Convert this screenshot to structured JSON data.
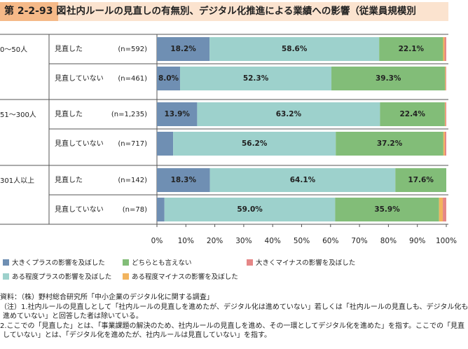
{
  "header": {
    "figure_number": "第 2-2-93 図",
    "title": "社内ルールの見直しの有無別、デジタル化推進による業績への影響（従業員規模別"
  },
  "chart_data": {
    "type": "bar",
    "orientation": "horizontal",
    "stacked": "percent",
    "groups": [
      {
        "label": "0～50人",
        "rows": [
          {
            "label": "見直した",
            "n": "(n=592)",
            "values": [
              18.2,
              58.6,
              22.1,
              0.5,
              0.6
            ],
            "value_labels": [
              "18.2%",
              "58.6%",
              "22.1%",
              "",
              ""
            ]
          },
          {
            "label": "見直していない",
            "n": "(n=461)",
            "values": [
              8.0,
              52.3,
              39.3,
              0.2,
              0.2
            ],
            "value_labels": [
              "8.0%",
              "52.3%",
              "39.3%",
              "",
              ""
            ]
          }
        ]
      },
      {
        "label": "51～300人",
        "rows": [
          {
            "label": "見直した",
            "n": "(n=1,235)",
            "values": [
              13.9,
              63.2,
              22.4,
              0.2,
              0.3
            ],
            "value_labels": [
              "13.9%",
              "63.2%",
              "22.4%",
              "",
              ""
            ]
          },
          {
            "label": "見直していない",
            "n": "(n=717)",
            "values": [
              5.6,
              56.2,
              37.2,
              0.5,
              0.5
            ],
            "value_labels": [
              "",
              "56.2%",
              "37.2%",
              "",
              ""
            ]
          }
        ]
      },
      {
        "label": "301人以上",
        "rows": [
          {
            "label": "見直した",
            "n": "(n=142)",
            "values": [
              18.3,
              64.1,
              17.6,
              0.0,
              0.0
            ],
            "value_labels": [
              "18.3%",
              "64.1%",
              "17.6%",
              "",
              ""
            ]
          },
          {
            "label": "見直していない",
            "n": "(n=78)",
            "values": [
              2.6,
              59.0,
              35.9,
              1.3,
              1.2
            ],
            "value_labels": [
              "",
              "59.0%",
              "35.9%",
              "",
              ""
            ]
          }
        ]
      }
    ],
    "series": [
      {
        "name": "大きくプラスの影響を及ぼした",
        "color": "#6f8fb3"
      },
      {
        "name": "ある程度プラスの影響を及ぼした",
        "color": "#9dd1cc"
      },
      {
        "name": "どちらとも言えない",
        "color": "#82bd78"
      },
      {
        "name": "ある程度マイナスの影響を及ぼした",
        "color": "#f2b45e"
      },
      {
        "name": "大きくマイナスの影響を及ぼした",
        "color": "#e58787"
      }
    ],
    "x_ticks": [
      "0%",
      "10%",
      "20%",
      "30%",
      "40%",
      "50%",
      "60%",
      "70%",
      "80%",
      "90%",
      "100%"
    ],
    "xlim": [
      0,
      100
    ],
    "grid": false,
    "legend_position": "bottom"
  },
  "notes": [
    "資料：（株）野村総合研究所「中小企業のデジタル化に関する調査」",
    "（注）1.社内ルールの見直しとして「社内ルールの見直しを進めたが、デジタル化は進めていない」若しくは「社内ルールの見直しも、デジタル化も",
    "進めていない」と回答した者は除いている。",
    "2.ここでの「見直した」とは、「事業課題の解決のため、社内ルールの見直しを進め、その一環としてデジタル化を進めた」を指す。ここでの「見直",
    "していない」とは、「デジタル化を進めたが、社内ルールは見直していない」を指す。"
  ]
}
